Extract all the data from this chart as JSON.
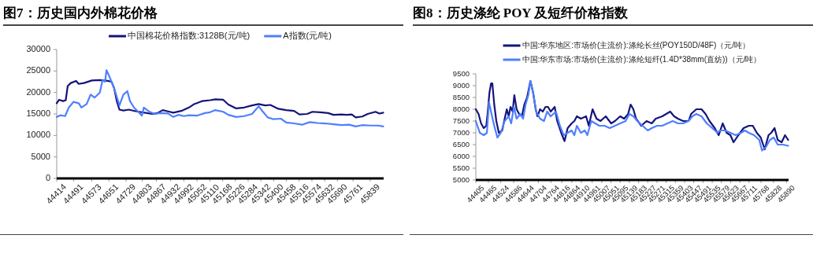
{
  "chart_data": [
    {
      "type": "line",
      "title": "图7：历史国内外棉花价格",
      "legend": "top",
      "xlim": [
        44414,
        45900
      ],
      "xticks": [
        44414,
        44491,
        44573,
        44651,
        44729,
        44803,
        44867,
        44932,
        44992,
        45052,
        45110,
        45168,
        45226,
        45284,
        45342,
        45400,
        45458,
        45516,
        45574,
        45632,
        45690,
        45761,
        45839
      ],
      "ylim": [
        0,
        30000
      ],
      "yticks": [
        0,
        5000,
        10000,
        15000,
        20000,
        25000,
        30000
      ],
      "series": [
        {
          "name": "中国棉花价格指数:3128B(元/吨)",
          "color": "#14147a",
          "x": [
            44414,
            44425,
            44443,
            44455,
            44464,
            44478,
            44502,
            44514,
            44538,
            44574,
            44610,
            44646,
            44663,
            44675,
            44687,
            44699,
            44717,
            44741,
            44777,
            44813,
            44848,
            44872,
            44896,
            44920,
            44944,
            44980,
            45015,
            45039,
            45075,
            45111,
            45135,
            45171,
            45194,
            45230,
            45266,
            45302,
            45332,
            45361,
            45385,
            45421,
            45457,
            45493,
            45517,
            45552,
            45576,
            45612,
            45648,
            45672,
            45708,
            45731,
            45755,
            45773,
            45803,
            45827,
            45863,
            45881,
            45898
          ],
          "values": [
            17500,
            18300,
            18000,
            18200,
            21500,
            22200,
            22700,
            22000,
            22200,
            22800,
            22900,
            22700,
            22500,
            21000,
            18000,
            16000,
            15800,
            16000,
            15600,
            15300,
            15000,
            15200,
            15900,
            15600,
            15300,
            15700,
            16500,
            17300,
            18000,
            18200,
            18400,
            18300,
            17200,
            16300,
            16500,
            17000,
            17300,
            17000,
            17100,
            16200,
            15900,
            15700,
            14900,
            15000,
            15500,
            15400,
            15200,
            14800,
            14900,
            14800,
            14900,
            14200,
            14400,
            15000,
            15500,
            15100,
            15300
          ]
        },
        {
          "name": "A指数(元/吨)",
          "color": "#4f7fff",
          "x": [
            44414,
            44431,
            44452,
            44469,
            44490,
            44514,
            44526,
            44550,
            44568,
            44586,
            44610,
            44622,
            44634,
            44640,
            44651,
            44663,
            44675,
            44687,
            44699,
            44717,
            44735,
            44747,
            44765,
            44783,
            44801,
            44810,
            44836,
            44860,
            44884,
            44920,
            44944,
            44968,
            44992,
            45015,
            45051,
            45087,
            45111,
            45135,
            45171,
            45194,
            45230,
            45266,
            45302,
            45332,
            45350,
            45373,
            45397,
            45433,
            45457,
            45493,
            45529,
            45564,
            45600,
            45636,
            45672,
            45708,
            45743,
            45773,
            45803,
            45839,
            45875,
            45898
          ],
          "values": [
            14300,
            14700,
            14500,
            16500,
            17800,
            17500,
            16500,
            17300,
            19500,
            18800,
            20000,
            22800,
            22500,
            25200,
            24000,
            22500,
            21000,
            19000,
            17000,
            19500,
            20300,
            18000,
            16500,
            15600,
            14600,
            16500,
            15500,
            15000,
            15200,
            15100,
            14300,
            14800,
            14500,
            14700,
            14600,
            15200,
            15400,
            15900,
            15500,
            14800,
            14300,
            14500,
            15000,
            16800,
            15600,
            14200,
            13800,
            13900,
            13000,
            12800,
            12500,
            13100,
            12900,
            12800,
            12600,
            12400,
            12500,
            12100,
            12400,
            12300,
            12300,
            12100
          ]
        }
      ]
    },
    {
      "type": "line",
      "title": "图8：历史涤纶 POY 及短纤价格指数",
      "legend": "top",
      "xlim": [
        44405,
        45900
      ],
      "xticks": [
        44405,
        44465,
        44524,
        44586,
        44644,
        44704,
        44764,
        44816,
        44864,
        44910,
        44961,
        45007,
        45051,
        45095,
        45139,
        45183,
        45227,
        45271,
        45315,
        45359,
        45403,
        45447,
        45491,
        45535,
        45579,
        45623,
        45667,
        45711,
        45768,
        45828,
        45890
      ],
      "ylim": [
        5000,
        9500
      ],
      "yticks": [
        5000,
        5500,
        6000,
        6500,
        7000,
        7500,
        8000,
        8500,
        9000,
        9500
      ],
      "series": [
        {
          "name": "中国:华东地区:市场价(主流价):涤纶长丝(POY150D/48F)（元/吨）",
          "color": "#14147a",
          "x": [
            44405,
            44418,
            44430,
            44443,
            44455,
            44461,
            44470,
            44478,
            44484,
            44493,
            44503,
            44515,
            44531,
            44543,
            44553,
            44562,
            44571,
            44581,
            44589,
            44600,
            44612,
            44625,
            44637,
            44650,
            44666,
            44679,
            44691,
            44700,
            44712,
            44725,
            44738,
            44750,
            44763,
            44782,
            44794,
            44813,
            44829,
            44844,
            44863,
            44876,
            44888,
            44907,
            44932,
            44945,
            44963,
            44982,
            45001,
            45026,
            45052,
            45070,
            45095,
            45114,
            45133,
            45145,
            45158,
            45171,
            45196,
            45221,
            45246,
            45265,
            45296,
            45315,
            45334,
            45353,
            45371,
            45396,
            45422,
            45434,
            45459,
            45484,
            45503,
            45522,
            45547,
            45566,
            45585,
            45604,
            45622,
            45637,
            45660,
            45685,
            45710,
            45729,
            45748,
            45767,
            45786,
            45804,
            45817,
            45833,
            45848,
            45867,
            45883,
            45898
          ],
          "values": [
            8000,
            7800,
            7400,
            7200,
            7300,
            7800,
            8700,
            9100,
            9100,
            8200,
            7500,
            7000,
            7100,
            7600,
            8000,
            7700,
            8100,
            7900,
            8600,
            8000,
            7800,
            7700,
            8200,
            8500,
            9200,
            8700,
            8000,
            7700,
            8000,
            7900,
            8100,
            8100,
            7900,
            8100,
            7500,
            7000,
            6650,
            7200,
            7400,
            7500,
            7700,
            7600,
            7700,
            7300,
            8000,
            7600,
            7500,
            7700,
            7400,
            7500,
            7700,
            7600,
            7800,
            8200,
            8000,
            7600,
            7300,
            7500,
            7400,
            7600,
            7700,
            7800,
            7900,
            7700,
            7600,
            7500,
            7500,
            7800,
            8000,
            8000,
            7800,
            7500,
            7200,
            6900,
            7400,
            7000,
            6900,
            6600,
            6900,
            7200,
            7300,
            7300,
            7000,
            6800,
            6300,
            6900,
            7000,
            7200,
            6700,
            6600,
            6900,
            6700
          ]
        },
        {
          "name": "中国:华东市场:市场价(主流价):涤纶短纤(1.4D*38mm(直纺))（元/吨）",
          "color": "#4f7fff",
          "x": [
            44405,
            44424,
            44443,
            44458,
            44468,
            44480,
            44493,
            44508,
            44524,
            44543,
            44562,
            44574,
            44587,
            44600,
            44618,
            44631,
            44643,
            44656,
            44666,
            44679,
            44694,
            44712,
            44731,
            44746,
            44763,
            44788,
            44807,
            44825,
            44844,
            44863,
            44876,
            44888,
            44907,
            44926,
            44938,
            44957,
            44976,
            44995,
            45020,
            45045,
            45070,
            45095,
            45121,
            45139,
            45158,
            45177,
            45202,
            45227,
            45246,
            45271,
            45296,
            45321,
            45346,
            45371,
            45396,
            45422,
            45440,
            45459,
            45484,
            45509,
            45535,
            45560,
            45572,
            45597,
            45622,
            45647,
            45673,
            45691,
            45710,
            45735,
            45760,
            45773,
            45792,
            45811,
            45829,
            45848,
            45873,
            45898
          ],
          "values": [
            7500,
            7000,
            6900,
            7000,
            8300,
            7800,
            7300,
            6800,
            7000,
            7500,
            7700,
            7400,
            8100,
            7600,
            7800,
            7600,
            8200,
            8600,
            9200,
            8700,
            7900,
            7600,
            7500,
            7900,
            7700,
            7900,
            7300,
            6900,
            7000,
            7100,
            6900,
            7300,
            7000,
            7100,
            6900,
            7500,
            7400,
            7300,
            7300,
            7200,
            7300,
            7400,
            7500,
            7800,
            7700,
            7500,
            7300,
            7100,
            7200,
            7300,
            7300,
            7400,
            7500,
            7400,
            7400,
            7500,
            7700,
            7800,
            7700,
            7400,
            7200,
            7000,
            7100,
            7100,
            7000,
            6900,
            7000,
            7100,
            7000,
            6900,
            6700,
            6250,
            6400,
            6700,
            6800,
            6500,
            6500,
            6450
          ]
        }
      ]
    }
  ]
}
